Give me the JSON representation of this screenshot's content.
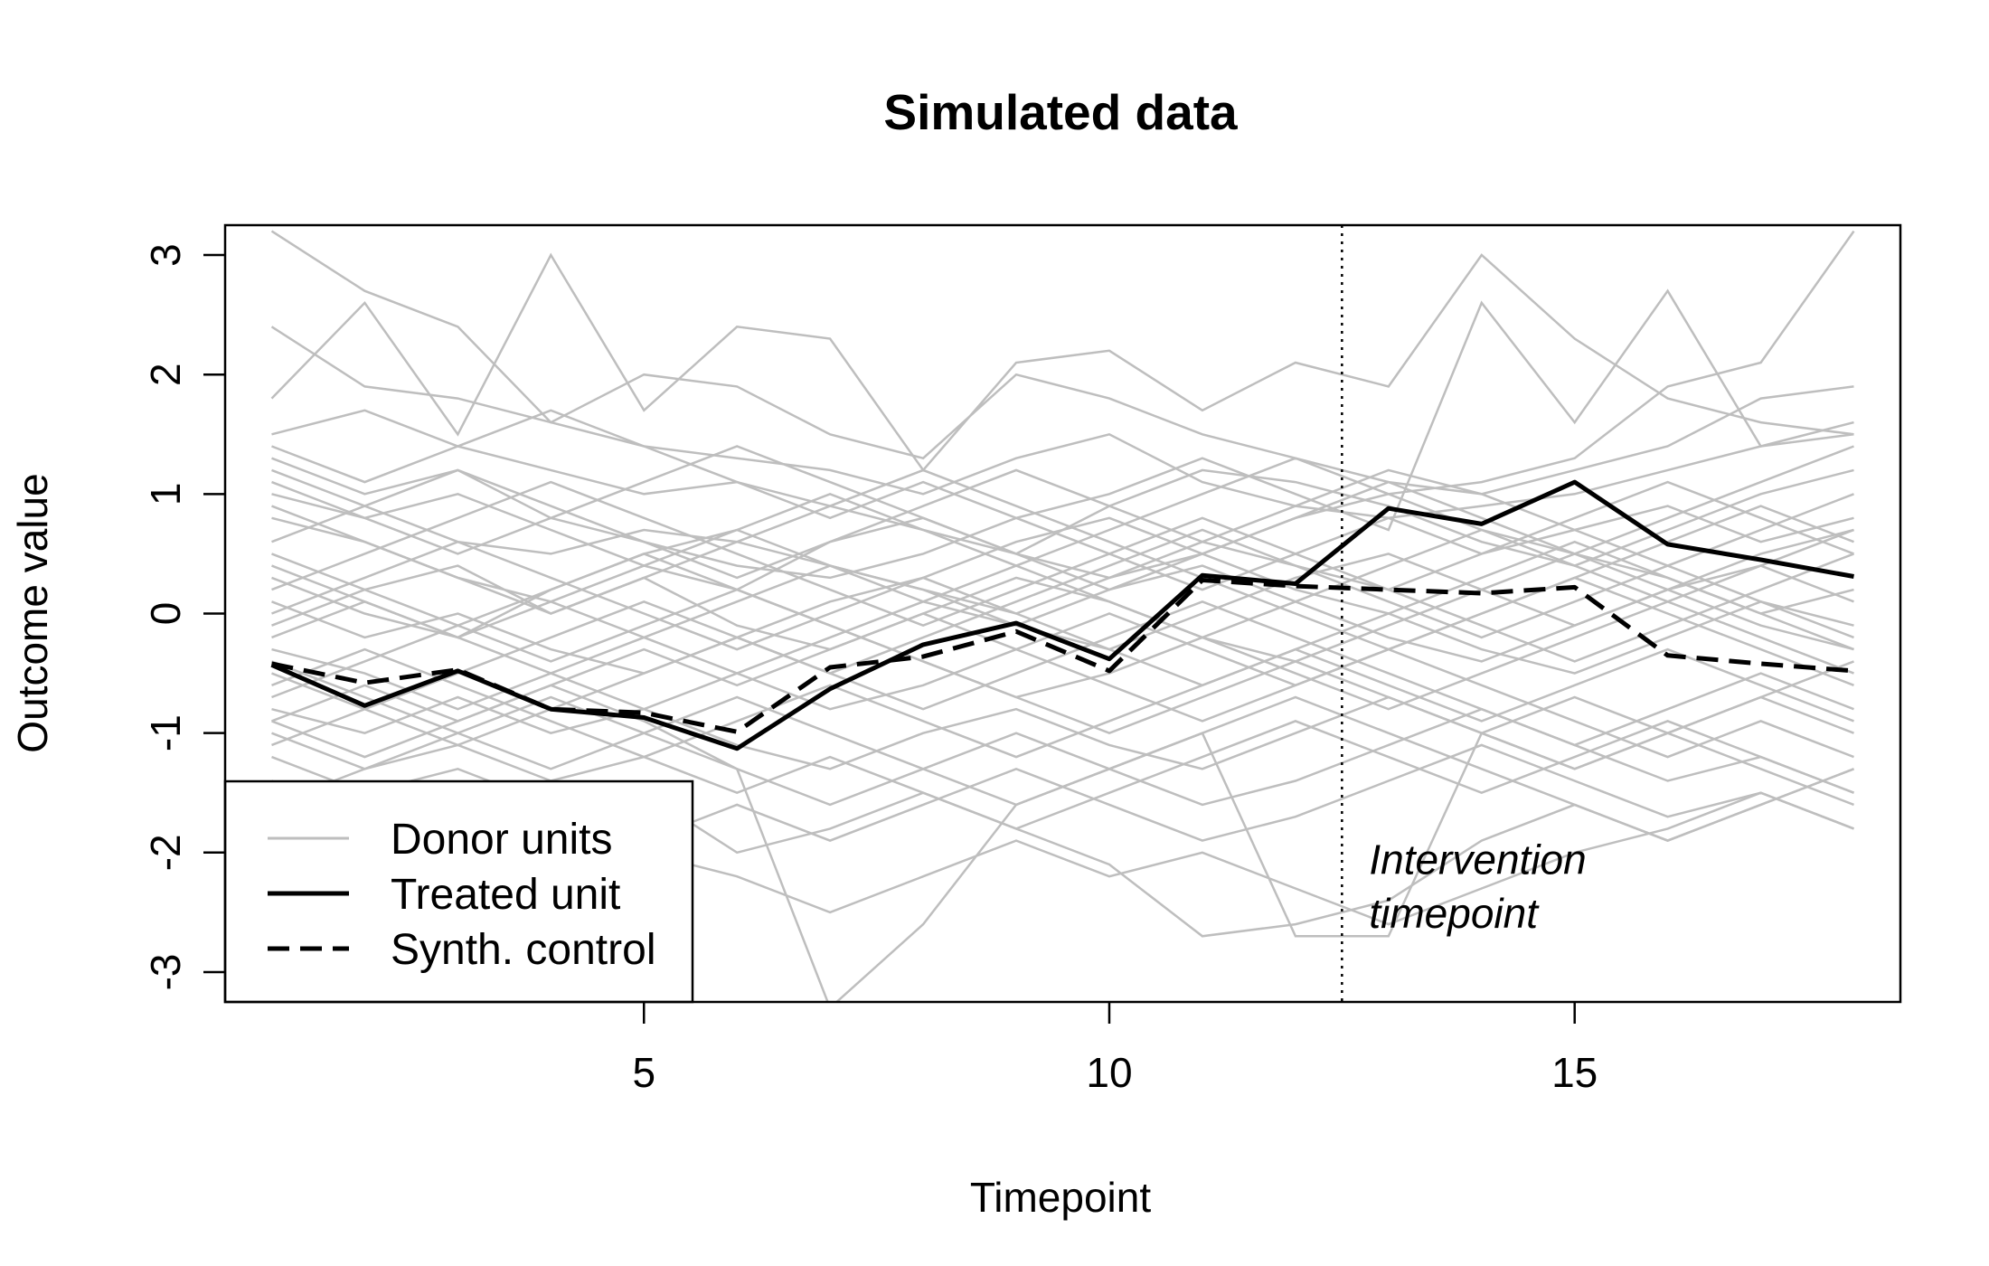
{
  "chart_data": {
    "type": "line",
    "title": "Simulated data",
    "xlabel": "Timepoint",
    "ylabel": "Outcome value",
    "xlim": [
      0.5,
      18.5
    ],
    "ylim": [
      -3.25,
      3.25
    ],
    "xticks": [
      5,
      10,
      15
    ],
    "yticks": [
      -3,
      -2,
      -1,
      0,
      1,
      2,
      3
    ],
    "grid": false,
    "legend": {
      "position": "bottom-left",
      "entries": [
        {
          "label": "Donor units",
          "color": "#bebebe",
          "style": "solid"
        },
        {
          "label": "Treated unit",
          "color": "#000000",
          "style": "solid"
        },
        {
          "label": "Synth. control",
          "color": "#000000",
          "style": "dashed"
        }
      ]
    },
    "x": [
      1,
      2,
      3,
      4,
      5,
      6,
      7,
      8,
      9,
      10,
      11,
      12,
      13,
      14,
      15,
      16,
      17,
      18
    ],
    "series": [
      {
        "name": "Treated unit",
        "color": "#000000",
        "style": "solid",
        "values": [
          -0.43,
          -0.77,
          -0.48,
          -0.8,
          -0.87,
          -1.13,
          -0.63,
          -0.26,
          -0.08,
          -0.38,
          0.32,
          0.25,
          0.88,
          0.75,
          1.1,
          0.58,
          0.45,
          0.31
        ]
      },
      {
        "name": "Synth. control",
        "color": "#000000",
        "style": "dashed",
        "values": [
          -0.42,
          -0.58,
          -0.47,
          -0.8,
          -0.83,
          -0.99,
          -0.45,
          -0.36,
          -0.15,
          -0.48,
          0.28,
          0.23,
          0.2,
          0.17,
          0.22,
          -0.35,
          -0.42,
          -0.48
        ]
      }
    ],
    "donor_color": "#bebebe",
    "donor_series": [
      [
        3.2,
        2.7,
        2.4,
        1.6,
        2.0,
        1.9,
        1.5,
        1.3,
        2.0,
        1.8,
        1.5,
        1.3,
        1.1,
        1.0,
        1.2,
        1.4,
        1.8,
        1.9
      ],
      [
        2.4,
        1.9,
        1.8,
        1.6,
        1.4,
        1.3,
        1.2,
        1.0,
        1.3,
        1.5,
        1.1,
        0.9,
        0.8,
        0.9,
        1.0,
        1.2,
        1.4,
        1.5
      ],
      [
        1.8,
        2.6,
        1.5,
        3.0,
        1.7,
        2.4,
        2.3,
        1.2,
        2.1,
        2.2,
        1.7,
        2.1,
        1.9,
        3.0,
        2.3,
        1.8,
        1.6,
        1.5
      ],
      [
        1.5,
        1.7,
        1.4,
        1.2,
        1.0,
        1.1,
        0.9,
        0.7,
        0.5,
        0.3,
        0.5,
        0.8,
        1.0,
        1.1,
        1.3,
        1.9,
        2.1,
        3.2
      ],
      [
        1.3,
        1.0,
        1.2,
        0.8,
        0.6,
        0.4,
        0.3,
        0.5,
        0.8,
        1.0,
        1.3,
        1.0,
        0.7,
        2.6,
        1.6,
        2.7,
        1.4,
        1.6
      ],
      [
        1.2,
        0.9,
        0.6,
        0.5,
        0.7,
        0.6,
        0.4,
        0.2,
        0.0,
        0.3,
        0.6,
        0.4,
        0.2,
        0.5,
        0.7,
        0.9,
        0.6,
        0.8
      ],
      [
        1.0,
        0.8,
        1.0,
        0.7,
        0.4,
        0.2,
        0.6,
        0.8,
        0.5,
        0.9,
        1.2,
        1.1,
        0.9,
        0.6,
        0.4,
        0.7,
        1.0,
        1.2
      ],
      [
        0.8,
        0.6,
        0.3,
        0.1,
        -0.2,
        0.1,
        0.4,
        0.2,
        -0.1,
        -0.3,
        0.0,
        0.3,
        0.5,
        0.2,
        -0.1,
        0.2,
        0.5,
        0.7
      ],
      [
        0.5,
        0.2,
        0.4,
        0.0,
        0.3,
        -0.1,
        -0.3,
        0.0,
        0.3,
        0.1,
        -0.2,
        -0.4,
        -0.1,
        0.2,
        0.5,
        0.3,
        0.0,
        0.2
      ],
      [
        0.3,
        0.0,
        -0.2,
        0.2,
        0.5,
        0.7,
        0.4,
        0.1,
        -0.1,
        0.2,
        0.4,
        0.1,
        -0.2,
        -0.4,
        -0.1,
        0.2,
        0.4,
        0.1
      ],
      [
        0.1,
        -0.2,
        0.0,
        -0.3,
        -0.5,
        -0.2,
        0.1,
        0.3,
        0.6,
        0.8,
        0.5,
        0.2,
        0.0,
        -0.3,
        -0.5,
        -0.2,
        0.1,
        -0.1
      ],
      [
        -0.1,
        0.2,
        -0.1,
        -0.4,
        -0.1,
        0.2,
        -0.1,
        -0.4,
        -0.7,
        -0.5,
        -0.2,
        0.1,
        0.4,
        0.7,
        0.5,
        0.2,
        -0.1,
        -0.3
      ],
      [
        -0.3,
        -0.5,
        -0.8,
        -0.5,
        -0.2,
        -0.5,
        -0.8,
        -0.6,
        -0.3,
        0.0,
        -0.3,
        -0.6,
        -0.3,
        0.0,
        0.3,
        0.0,
        -0.3,
        -0.6
      ],
      [
        -0.6,
        -0.3,
        -0.6,
        -0.9,
        -1.2,
        -0.9,
        -0.6,
        -0.9,
        -1.2,
        -0.9,
        -0.6,
        -0.3,
        -0.6,
        -0.9,
        -0.6,
        -0.3,
        -0.6,
        -0.9
      ],
      [
        -0.8,
        -1.0,
        -0.7,
        -1.0,
        -0.8,
        -1.1,
        -1.3,
        -1.0,
        -0.8,
        -1.1,
        -1.3,
        -1.0,
        -0.7,
        -1.0,
        -1.3,
        -1.0,
        -0.7,
        -1.0
      ],
      [
        -0.9,
        -0.6,
        -0.9,
        -0.6,
        -0.9,
        -1.3,
        -1.6,
        -1.3,
        -1.0,
        -1.3,
        -1.6,
        -1.4,
        -1.1,
        -0.8,
        -1.1,
        -1.4,
        -1.2,
        -1.5
      ],
      [
        -1.0,
        -1.3,
        -1.1,
        -1.4,
        -1.2,
        -1.5,
        -1.2,
        -1.5,
        -1.8,
        -1.5,
        -1.2,
        -0.9,
        -1.2,
        -1.5,
        -1.2,
        -0.9,
        -1.2,
        -1.5
      ],
      [
        -1.2,
        -1.5,
        -1.3,
        -1.6,
        -1.9,
        -1.6,
        -1.9,
        -1.6,
        -1.3,
        -1.6,
        -1.9,
        -1.7,
        -1.4,
        -1.1,
        -1.4,
        -1.7,
        -1.5,
        -1.8
      ],
      [
        -1.4,
        -1.7,
        -2.0,
        -1.7,
        -1.5,
        -2.0,
        -1.8,
        -1.5,
        -1.8,
        -2.1,
        -2.7,
        -2.6,
        -2.4,
        -1.9,
        -1.6,
        -1.9,
        -1.6,
        -1.3
      ],
      [
        0.6,
        0.9,
        1.2,
        0.9,
        0.6,
        0.3,
        0.6,
        0.9,
        1.2,
        0.9,
        0.6,
        0.9,
        1.2,
        1.0,
        0.7,
        0.4,
        0.7,
        1.0
      ],
      [
        0.2,
        0.5,
        0.8,
        1.1,
        0.8,
        0.5,
        0.2,
        -0.1,
        0.2,
        0.5,
        0.8,
        0.5,
        0.2,
        -0.1,
        -0.4,
        -0.1,
        0.2,
        0.5
      ],
      [
        -0.2,
        0.1,
        -0.2,
        -0.5,
        -0.8,
        -0.5,
        -0.2,
        0.1,
        0.4,
        0.1,
        -0.2,
        -0.5,
        -0.8,
        -0.5,
        -0.2,
        0.1,
        -0.2,
        -0.5
      ],
      [
        -0.5,
        -0.8,
        -1.1,
        -0.8,
        -0.5,
        -0.2,
        -0.5,
        -0.8,
        -0.5,
        -0.2,
        0.1,
        -0.2,
        -0.5,
        -0.8,
        -1.1,
        -0.8,
        -0.5,
        -0.8
      ],
      [
        -1.1,
        -0.8,
        -0.5,
        -0.2,
        0.1,
        -0.2,
        -0.5,
        -0.2,
        0.1,
        0.4,
        0.7,
        0.4,
        0.1,
        -0.2,
        0.1,
        0.4,
        0.1,
        -0.2
      ],
      [
        0.9,
        0.6,
        0.3,
        0.0,
        0.3,
        0.6,
        0.9,
        1.2,
        0.9,
        0.6,
        0.3,
        0.0,
        -0.3,
        0.0,
        0.3,
        0.6,
        0.9,
        0.6
      ],
      [
        -0.7,
        -0.4,
        -0.1,
        0.2,
        0.5,
        0.2,
        -0.1,
        -0.4,
        -0.7,
        -1.0,
        -0.7,
        -0.4,
        -0.7,
        -1.0,
        -1.3,
        -1.0,
        -0.7,
        -0.4
      ],
      [
        0.0,
        0.3,
        0.6,
        0.3,
        0.0,
        -0.3,
        0.0,
        0.3,
        0.0,
        -0.3,
        -0.6,
        -0.3,
        0.0,
        0.3,
        0.6,
        0.3,
        0.0,
        -0.3
      ],
      [
        -2.0,
        -1.8,
        -1.5,
        -1.8,
        -2.0,
        -2.2,
        -2.5,
        -2.2,
        -1.9,
        -2.2,
        -2.0,
        -2.3,
        -2.6,
        -2.3,
        -2.0,
        -1.8,
        -1.5,
        -1.8
      ],
      [
        -0.4,
        -0.7,
        -1.0,
        -0.7,
        -1.0,
        -1.3,
        -3.3,
        -2.6,
        -1.6,
        -1.3,
        -1.0,
        -2.7,
        -2.7,
        -1.0,
        -0.7,
        -1.0,
        -1.3,
        -1.6
      ],
      [
        1.1,
        0.8,
        0.5,
        0.8,
        1.1,
        1.4,
        1.1,
        0.8,
        0.5,
        0.2,
        0.5,
        0.8,
        1.1,
        0.8,
        0.5,
        0.8,
        1.1,
        1.4
      ],
      [
        -1.6,
        -1.3,
        -1.0,
        -1.3,
        -1.0,
        -0.7,
        -1.0,
        -1.3,
        -1.6,
        -1.3,
        -1.0,
        -0.7,
        -1.0,
        -1.3,
        -1.6,
        -1.9,
        -1.6,
        -1.3
      ],
      [
        0.4,
        0.1,
        -0.2,
        0.1,
        0.4,
        0.7,
        1.0,
        0.7,
        0.4,
        0.7,
        1.0,
        1.3,
        1.0,
        0.7,
        0.4,
        0.1,
        0.4,
        0.7
      ],
      [
        -0.9,
        -1.2,
        -0.9,
        -0.6,
        -0.3,
        -0.6,
        -0.3,
        0.0,
        -0.3,
        -0.6,
        -0.9,
        -0.6,
        -0.3,
        -0.6,
        -0.9,
        -1.2,
        -0.9,
        -1.2
      ],
      [
        1.4,
        1.1,
        1.4,
        1.7,
        1.4,
        1.1,
        0.8,
        1.1,
        0.8,
        0.5,
        0.2,
        0.5,
        0.8,
        0.5,
        0.8,
        1.1,
        0.8,
        0.5
      ]
    ],
    "annotation": {
      "lines": [
        "Intervention",
        "timepoint"
      ],
      "intervention_x": 12.5
    }
  }
}
